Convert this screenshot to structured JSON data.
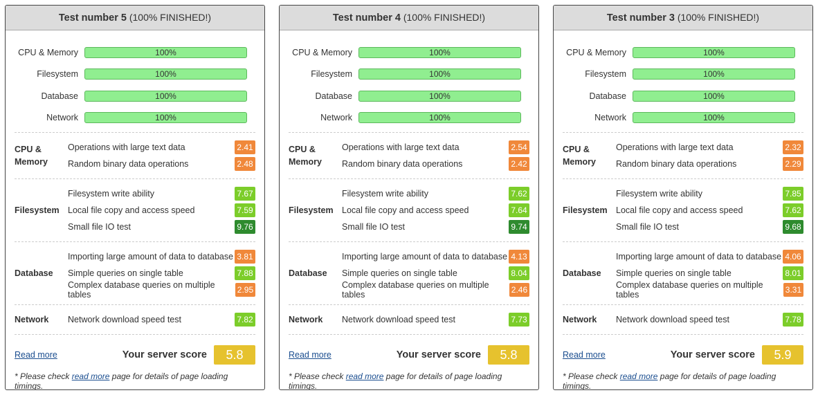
{
  "panels": [
    {
      "title": "Test number 5",
      "status": "(100% FINISHED!)",
      "progress": [
        {
          "label": "CPU & Memory",
          "value": "100%"
        },
        {
          "label": "Filesystem",
          "value": "100%"
        },
        {
          "label": "Database",
          "value": "100%"
        },
        {
          "label": "Network",
          "value": "100%"
        }
      ],
      "groups": [
        {
          "name": "CPU & Memory",
          "tests": [
            {
              "label": "Operations with large text data",
              "score": 2.41
            },
            {
              "label": "Random binary data operations",
              "score": 2.48
            }
          ]
        },
        {
          "name": "Filesystem",
          "tests": [
            {
              "label": "Filesystem write ability",
              "score": 7.67
            },
            {
              "label": "Local file copy and access speed",
              "score": 7.59
            },
            {
              "label": "Small file IO test",
              "score": 9.76
            }
          ]
        },
        {
          "name": "Database",
          "tests": [
            {
              "label": "Importing large amount of data to database",
              "score": 3.81
            },
            {
              "label": "Simple queries on single table",
              "score": 7.88
            },
            {
              "label": "Complex database queries on multiple tables",
              "score": 2.95
            }
          ]
        },
        {
          "name": "Network",
          "tests": [
            {
              "label": "Network download speed test",
              "score": 7.82
            }
          ]
        }
      ],
      "read_more": "Read more",
      "score_label": "Your server score",
      "score": 5.8,
      "note_prefix": "* Please check",
      "note_link": "read more",
      "note_suffix": "page for details of page loading timings."
    },
    {
      "title": "Test number 4",
      "status": "(100% FINISHED!)",
      "progress": [
        {
          "label": "CPU & Memory",
          "value": "100%"
        },
        {
          "label": "Filesystem",
          "value": "100%"
        },
        {
          "label": "Database",
          "value": "100%"
        },
        {
          "label": "Network",
          "value": "100%"
        }
      ],
      "groups": [
        {
          "name": "CPU & Memory",
          "tests": [
            {
              "label": "Operations with large text data",
              "score": 2.54
            },
            {
              "label": "Random binary data operations",
              "score": 2.42
            }
          ]
        },
        {
          "name": "Filesystem",
          "tests": [
            {
              "label": "Filesystem write ability",
              "score": 7.62
            },
            {
              "label": "Local file copy and access speed",
              "score": 7.64
            },
            {
              "label": "Small file IO test",
              "score": 9.74
            }
          ]
        },
        {
          "name": "Database",
          "tests": [
            {
              "label": "Importing large amount of data to database",
              "score": 4.13
            },
            {
              "label": "Simple queries on single table",
              "score": 8.04
            },
            {
              "label": "Complex database queries on multiple tables",
              "score": 2.46
            }
          ]
        },
        {
          "name": "Network",
          "tests": [
            {
              "label": "Network download speed test",
              "score": 7.73
            }
          ]
        }
      ],
      "read_more": "Read more",
      "score_label": "Your server score",
      "score": 5.8,
      "note_prefix": "* Please check",
      "note_link": "read more",
      "note_suffix": "page for details of page loading timings."
    },
    {
      "title": "Test number 3",
      "status": "(100% FINISHED!)",
      "progress": [
        {
          "label": "CPU & Memory",
          "value": "100%"
        },
        {
          "label": "Filesystem",
          "value": "100%"
        },
        {
          "label": "Database",
          "value": "100%"
        },
        {
          "label": "Network",
          "value": "100%"
        }
      ],
      "groups": [
        {
          "name": "CPU & Memory",
          "tests": [
            {
              "label": "Operations with large text data",
              "score": 2.32
            },
            {
              "label": "Random binary data operations",
              "score": 2.29
            }
          ]
        },
        {
          "name": "Filesystem",
          "tests": [
            {
              "label": "Filesystem write ability",
              "score": 7.85
            },
            {
              "label": "Local file copy and access speed",
              "score": 7.62
            },
            {
              "label": "Small file IO test",
              "score": 9.68
            }
          ]
        },
        {
          "name": "Database",
          "tests": [
            {
              "label": "Importing large amount of data to database",
              "score": 4.06
            },
            {
              "label": "Simple queries on single table",
              "score": 8.01
            },
            {
              "label": "Complex database queries on multiple tables",
              "score": 3.31
            }
          ]
        },
        {
          "name": "Network",
          "tests": [
            {
              "label": "Network download speed test",
              "score": 7.78
            }
          ]
        }
      ],
      "read_more": "Read more",
      "score_label": "Your server score",
      "score": 5.9,
      "note_prefix": "* Please check",
      "note_link": "read more",
      "note_suffix": "page for details of page loading timings."
    }
  ]
}
